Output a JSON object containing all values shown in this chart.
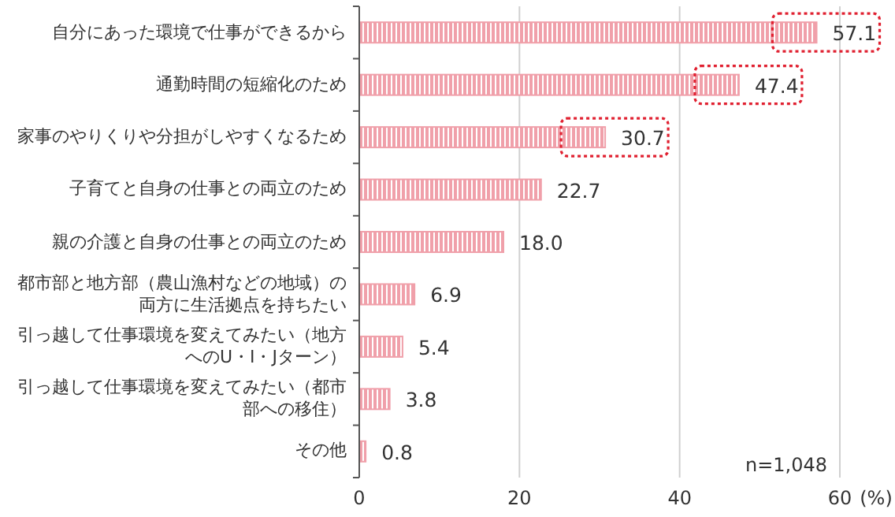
{
  "chart_data": {
    "type": "bar",
    "orientation": "horizontal",
    "xlabel": "(%)",
    "categories": [
      "自分にあった環境で仕事ができるから",
      "通勤時間の短縮化のため",
      "家事のやりくりや分担がしやすくなるため",
      "子育てと自身の仕事との両立のため",
      "親の介護と自身の仕事との両立のため",
      "都市部と地方部（農山漁村などの地域）の両方に生活拠点を持ちたい",
      "引っ越して仕事環境を変えてみたい（地方へのU・I・Jターン）",
      "引っ越して仕事環境を変えてみたい（都市部への移住）",
      "その他"
    ],
    "values": [
      57.1,
      47.4,
      30.7,
      22.7,
      18.0,
      6.9,
      5.4,
      3.8,
      0.8
    ],
    "value_labels": [
      "57.1",
      "47.4",
      "30.7",
      "22.7",
      "18.0",
      "6.9",
      "5.4",
      "3.8",
      "0.8"
    ],
    "color": "#f0a0aa",
    "xlim": [
      0,
      60
    ],
    "xticks": [
      0,
      20,
      40,
      60
    ],
    "grid": "x",
    "annotations": [
      "n=1,048"
    ]
  }
}
